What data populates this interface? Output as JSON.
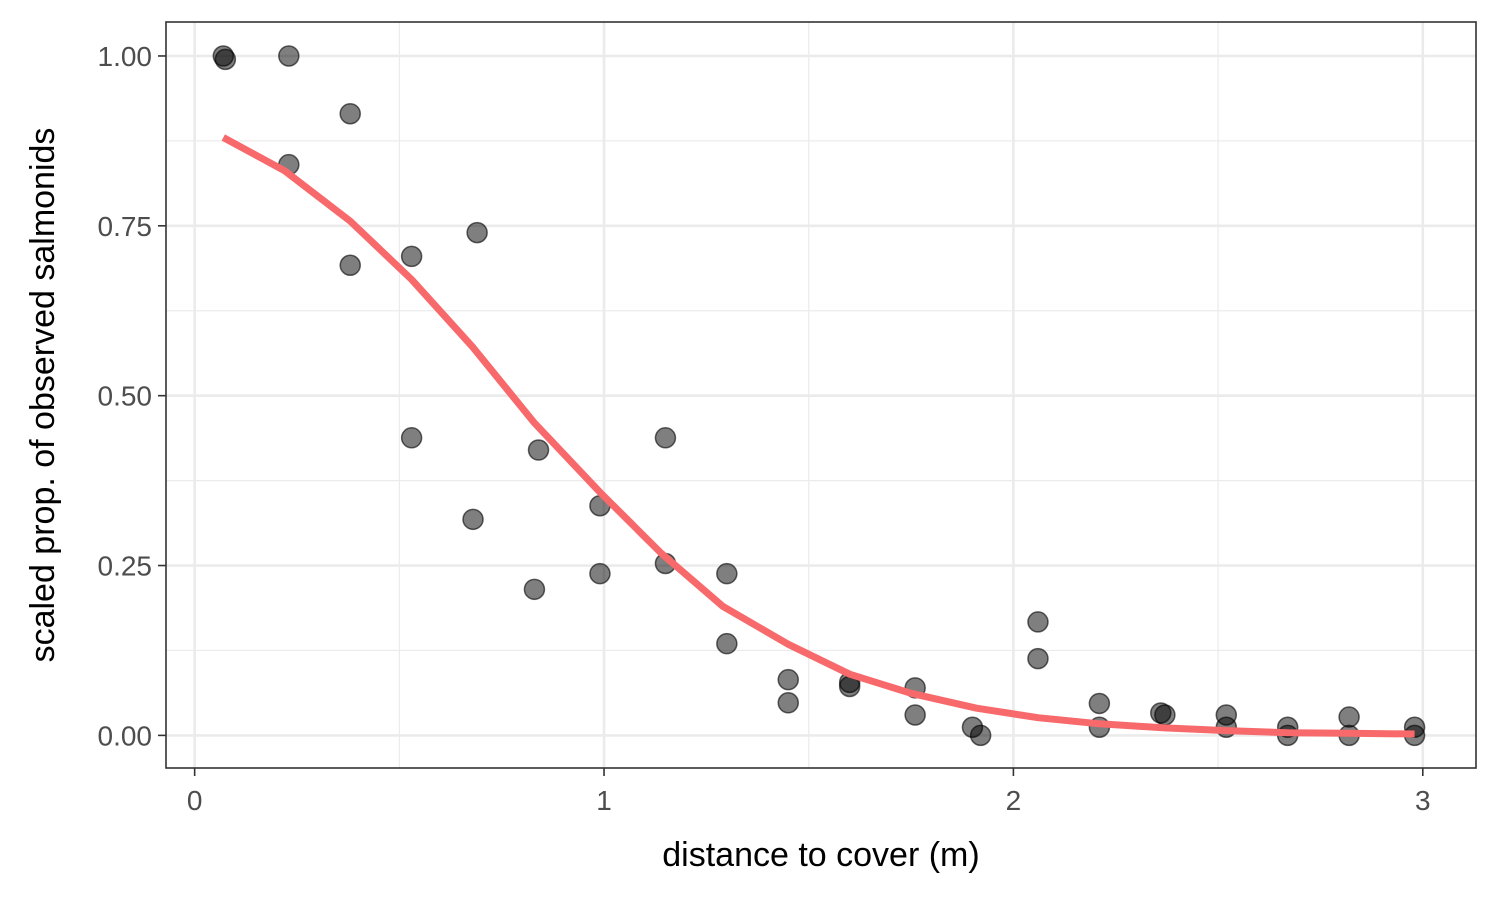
{
  "chart_data": {
    "type": "scatter",
    "title": "",
    "xlabel": "distance to cover (m)",
    "ylabel": "scaled prop. of observed salmonids",
    "xlim": [
      -0.07,
      3.13
    ],
    "ylim": [
      -0.048,
      1.05
    ],
    "x_ticks": [
      0,
      1,
      2,
      3
    ],
    "x_tick_labels": [
      "0",
      "1",
      "2",
      "3"
    ],
    "y_ticks": [
      0,
      0.25,
      0.5,
      0.75,
      1
    ],
    "y_tick_labels": [
      "0.00",
      "0.25",
      "0.50",
      "0.75",
      "1.00"
    ],
    "grid": true,
    "legend": "none",
    "colors": {
      "points": "#000000",
      "curve": "#f8696b",
      "panel_border": "#333333",
      "grid": "#ebebeb"
    },
    "series": [
      {
        "kind": "points",
        "x": [
          0.07,
          0.075,
          0.23,
          0.23,
          0.38,
          0.38,
          0.53,
          0.53,
          0.68,
          0.69,
          0.83,
          0.84,
          0.99,
          0.99,
          1.15,
          1.15,
          1.3,
          1.3,
          1.45,
          1.45,
          1.6,
          1.6,
          1.76,
          1.76,
          1.9,
          1.92,
          2.06,
          2.06,
          2.21,
          2.21,
          2.36,
          2.37,
          2.52,
          2.52,
          2.67,
          2.67,
          2.82,
          2.82,
          2.98,
          2.98
        ],
        "y": [
          1.0,
          0.995,
          1.0,
          0.84,
          0.915,
          0.692,
          0.705,
          0.438,
          0.318,
          0.74,
          0.215,
          0.42,
          0.338,
          0.238,
          0.438,
          0.253,
          0.238,
          0.135,
          0.082,
          0.048,
          0.078,
          0.072,
          0.07,
          0.03,
          0.012,
          0.0,
          0.167,
          0.113,
          0.047,
          0.012,
          0.033,
          0.03,
          0.03,
          0.012,
          0.012,
          0.0,
          0.027,
          0.0,
          0.012,
          0.0
        ]
      },
      {
        "kind": "curve",
        "x": [
          0.07,
          0.22,
          0.38,
          0.53,
          0.68,
          0.83,
          0.99,
          1.14,
          1.29,
          1.45,
          1.6,
          1.75,
          1.91,
          2.06,
          2.21,
          2.37,
          2.52,
          2.67,
          2.82,
          2.98
        ],
        "y": [
          0.88,
          0.831,
          0.757,
          0.671,
          0.571,
          0.46,
          0.358,
          0.268,
          0.19,
          0.134,
          0.09,
          0.062,
          0.04,
          0.026,
          0.017,
          0.011,
          0.007,
          0.004,
          0.003,
          0.002
        ]
      }
    ]
  }
}
